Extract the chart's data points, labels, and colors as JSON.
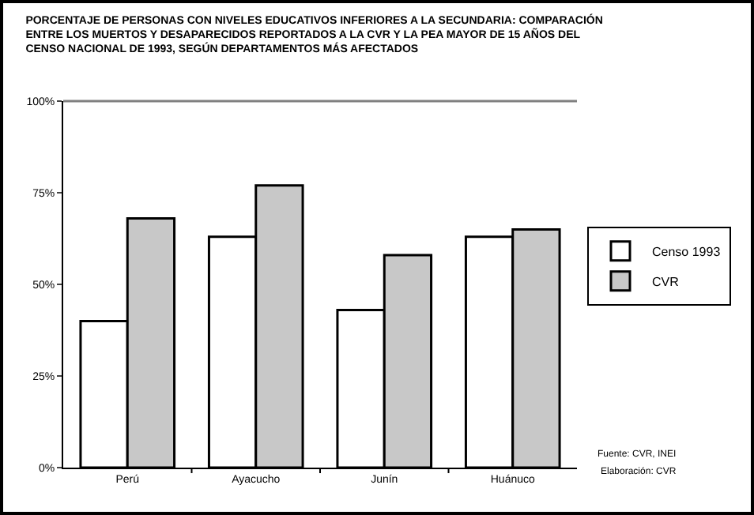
{
  "chart_data": {
    "type": "bar",
    "title": "PORCENTAJE DE PERSONAS CON NIVELES EDUCATIVOS INFERIORES A LA SECUNDARIA: COMPARACIÓN ENTRE LOS MUERTOS Y DESAPARECIDOS REPORTADOS A LA CVR Y LA PEA MAYOR DE 15 AÑOS DEL CENSO NACIONAL DE 1993, SEGÚN DEPARTAMENTOS MÁS AFECTADOS",
    "categories": [
      "Perú",
      "Ayacucho",
      "Junín",
      "Huánuco"
    ],
    "series": [
      {
        "name": "Censo 1993",
        "color": "#ffffff",
        "values": [
          40,
          63,
          43,
          63
        ]
      },
      {
        "name": "CVR",
        "color": "#c8c8c8",
        "values": [
          68,
          77,
          58,
          65
        ]
      }
    ],
    "ylim": [
      0,
      100
    ],
    "yticks": [
      {
        "value": 0,
        "label": "0%"
      },
      {
        "value": 25,
        "label": "25%"
      },
      {
        "value": 50,
        "label": "50%"
      },
      {
        "value": 75,
        "label": "75%"
      },
      {
        "value": 100,
        "label": "100%"
      }
    ],
    "grid": false,
    "legend": "right",
    "annotations": [
      "Fuente: CVR, INEI",
      "Elaboración: CVR"
    ]
  }
}
